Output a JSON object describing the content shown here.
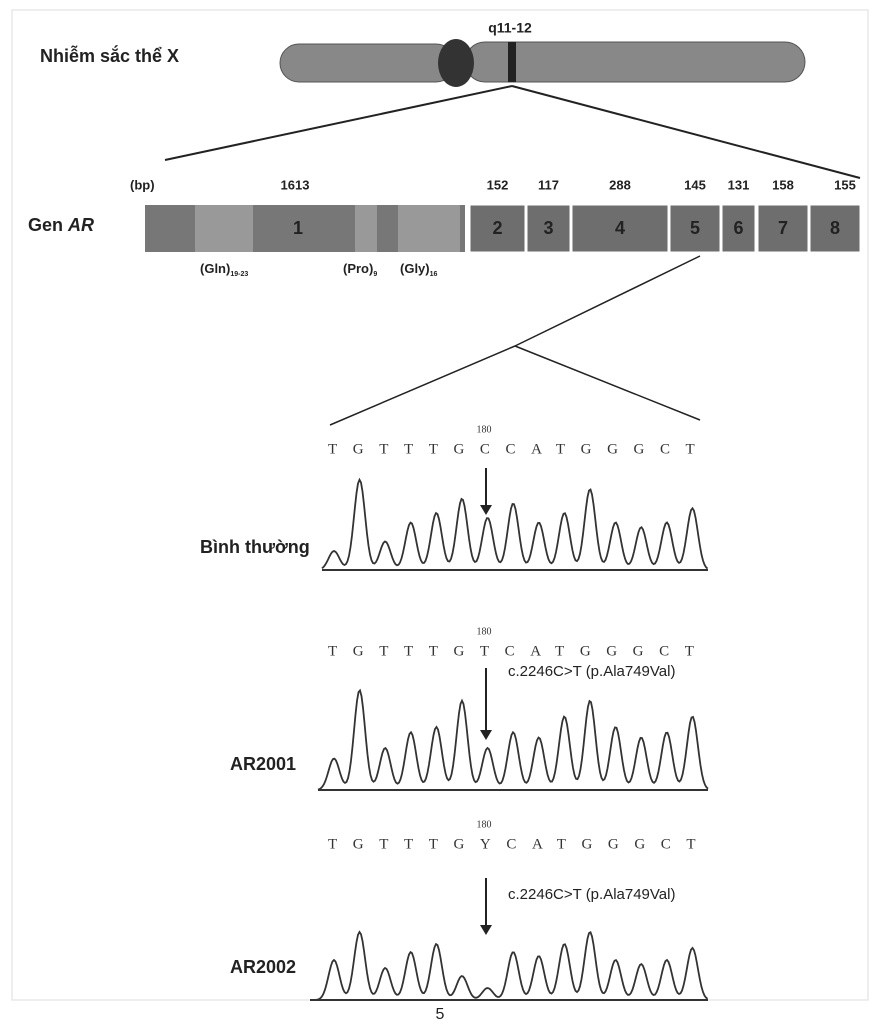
{
  "chromosome": {
    "label": "Nhiễm sắc thể X",
    "band": "q11-12"
  },
  "gene": {
    "label_prefix": "Gen",
    "label_name": "AR",
    "unit": "(bp)",
    "exons": [
      {
        "number": "1",
        "length": 1613
      },
      {
        "number": "2",
        "length": 152
      },
      {
        "number": "3",
        "length": 117
      },
      {
        "number": "4",
        "length": 288
      },
      {
        "number": "5",
        "length": 145
      },
      {
        "number": "6",
        "length": 131
      },
      {
        "number": "7",
        "length": 158
      },
      {
        "number": "8",
        "length": 155
      }
    ],
    "domains": [
      {
        "name": "(Gln)",
        "sub": "19-23"
      },
      {
        "name": "(Pro)",
        "sub": "9"
      },
      {
        "name": "(Gly)",
        "sub": "16"
      }
    ]
  },
  "samples": [
    {
      "label": "Bình thường",
      "sequence": "TGTTTGCCATGGGCT",
      "position": "180"
    },
    {
      "label": "AR2001",
      "sequence": "TGTTTGTCATGGGCT",
      "position": "180",
      "mutation": "c.2246C>T (p.Ala749Val)"
    },
    {
      "label": "AR2002",
      "sequence": "TGTTTGYCATGGGCT",
      "position": "180",
      "mutation": "c.2246C>T (p.Ala749Val)"
    }
  ],
  "page_number": "5"
}
